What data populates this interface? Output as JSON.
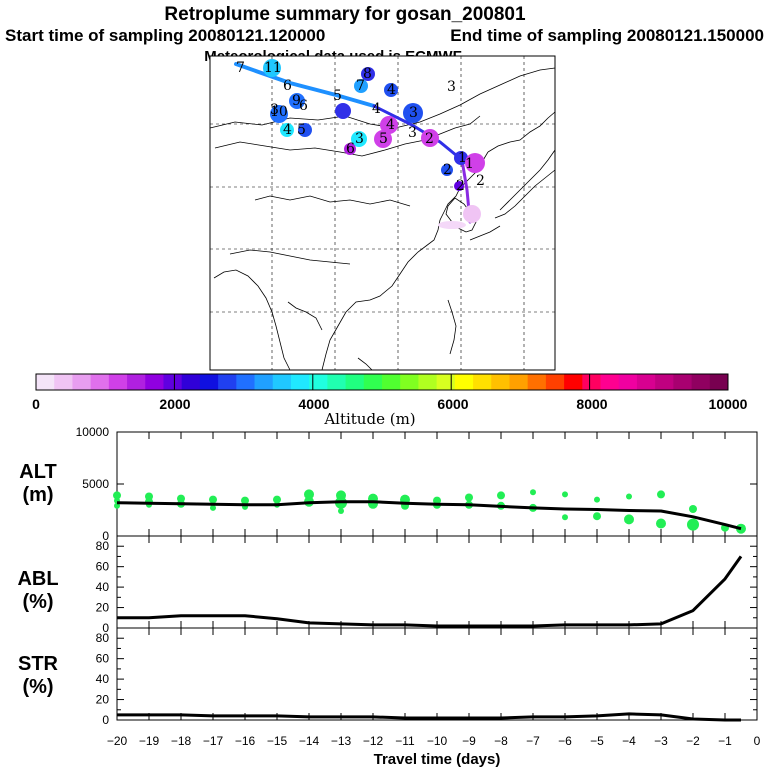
{
  "header": {
    "title": "Retroplume summary for gosan_200801",
    "start_label": "Start time of sampling 20080121.120000",
    "end_label": "End time of sampling 20080121.150000",
    "met_label": "Meteorological data used is ECMWF"
  },
  "chart_data": {
    "type": "line",
    "map": {
      "day_labels": [
        "11",
        "7",
        "6",
        "5",
        "4",
        "3",
        "2",
        "1",
        "8",
        "9",
        "10",
        "6",
        "7",
        "4",
        "3",
        "4",
        "5",
        "3",
        "6",
        "4",
        "3",
        "1",
        "2",
        "5",
        "2",
        "2",
        "3"
      ],
      "colors": {
        "track_light": "#1e90ff",
        "track_dark": "#3030e8",
        "track_purple": "#8a2be2"
      }
    },
    "colorbar": {
      "title": "Altitude (m)",
      "tick_labels": [
        "0",
        "2000",
        "4000",
        "6000",
        "8000",
        "10000"
      ],
      "min": 0,
      "max": 10000,
      "colors": [
        "#f4e4f8",
        "#f0c4f4",
        "#e89ef0",
        "#e070ec",
        "#d040e8",
        "#b020e0",
        "#9000e0",
        "#6000e0",
        "#3000d8",
        "#1010e0",
        "#2040f0",
        "#2070ff",
        "#20a0ff",
        "#20c8ff",
        "#20e8ff",
        "#20ffe0",
        "#20ffb0",
        "#20ff80",
        "#30ff50",
        "#50ff30",
        "#80ff20",
        "#b0ff20",
        "#d8ff20",
        "#ffff00",
        "#ffe000",
        "#ffc000",
        "#ffa000",
        "#ff7000",
        "#ff4000",
        "#ff0000",
        "#ff0060",
        "#ff0090",
        "#f000a0",
        "#d80090",
        "#c00080",
        "#a80070",
        "#900060",
        "#780050"
      ]
    },
    "xlabel": "Travel time (days)",
    "xlim": [
      -20,
      0
    ],
    "x_tick_labels": [
      "−20",
      "−19",
      "−18",
      "−17",
      "−16",
      "−15",
      "−14",
      "−13",
      "−12",
      "−11",
      "−10",
      "−9",
      "−8",
      "−7",
      "−6",
      "−5",
      "−4",
      "−3",
      "−2",
      "−1",
      "0"
    ],
    "panels": [
      {
        "name": "alt",
        "ylabel_top": "ALT",
        "ylabel_bottom": "(m)",
        "ylim": [
          0,
          10000
        ],
        "y_tick_labels": [
          "10000",
          "5000",
          "0"
        ],
        "y_ticks": [
          10000,
          5000,
          0
        ],
        "series": {
          "name": "mean altitude",
          "x": [
            -20,
            -19,
            -18,
            -17,
            -16,
            -15,
            -14,
            -13,
            -12,
            -11,
            -10,
            -9,
            -8,
            -7,
            -6,
            -5,
            -4,
            -3,
            -2,
            -1,
            -0.5
          ],
          "y": [
            3200,
            3150,
            3100,
            3050,
            3000,
            3000,
            3200,
            3300,
            3300,
            3150,
            3050,
            3000,
            2850,
            2700,
            2600,
            2550,
            2450,
            2400,
            1850,
            1100,
            700
          ]
        },
        "scatter": {
          "color": "#22ee55",
          "x": [
            -20,
            -20,
            -20,
            -19,
            -19,
            -19,
            -18,
            -18,
            -17,
            -17,
            -16,
            -16,
            -15,
            -15,
            -14,
            -14,
            -13,
            -13,
            -13,
            -12,
            -12,
            -11,
            -11,
            -10,
            -10,
            -9,
            -9,
            -8,
            -8,
            -7,
            -7,
            -6,
            -6,
            -5,
            -5,
            -4,
            -4,
            -3,
            -3,
            -2,
            -2,
            -1,
            -0.5
          ],
          "y": [
            3900,
            3400,
            2900,
            3800,
            3300,
            3000,
            3600,
            3100,
            3500,
            2700,
            3400,
            2800,
            3500,
            3000,
            4000,
            3300,
            3900,
            3200,
            2400,
            3600,
            3100,
            3500,
            2900,
            3400,
            3000,
            3700,
            3000,
            3900,
            2900,
            4200,
            2700,
            4000,
            1800,
            3500,
            1900,
            3800,
            1600,
            4000,
            1200,
            2600,
            1100,
            800,
            700
          ],
          "s": [
            4,
            3,
            3,
            4,
            4,
            3,
            4,
            4,
            4,
            3,
            4,
            3,
            4,
            3,
            5,
            5,
            5,
            6,
            3,
            5,
            5,
            5,
            4,
            4,
            4,
            4,
            4,
            4,
            4,
            3,
            4,
            3,
            3,
            3,
            4,
            3,
            5,
            4,
            5,
            4,
            6,
            4,
            5
          ]
        }
      },
      {
        "name": "abl",
        "ylabel_top": "ABL",
        "ylabel_bottom": "(%)",
        "ylim": [
          0,
          90
        ],
        "y_tick_labels": [
          "80",
          "60",
          "40",
          "20",
          "0"
        ],
        "y_ticks": [
          80,
          60,
          40,
          20,
          0
        ],
        "series": {
          "name": "fraction in ABL",
          "x": [
            -20,
            -19,
            -18,
            -17,
            -16,
            -15,
            -14,
            -13,
            -12,
            -11,
            -10,
            -9,
            -8,
            -7,
            -6,
            -5,
            -4,
            -3,
            -2,
            -1,
            -0.5
          ],
          "y": [
            10,
            10,
            12,
            12,
            12,
            9,
            5,
            4,
            3,
            3,
            2,
            2,
            2,
            2,
            3,
            3,
            3,
            4,
            17,
            48,
            70
          ]
        }
      },
      {
        "name": "str",
        "ylabel_top": "STR",
        "ylabel_bottom": "(%)",
        "ylim": [
          0,
          90
        ],
        "y_tick_labels": [
          "80",
          "60",
          "40",
          "20",
          "0"
        ],
        "y_ticks": [
          80,
          60,
          40,
          20,
          0
        ],
        "series": {
          "name": "fraction in stratosphere",
          "x": [
            -20,
            -19,
            -18,
            -17,
            -16,
            -15,
            -14,
            -13,
            -12,
            -11,
            -10,
            -9,
            -8,
            -7,
            -6,
            -5,
            -4,
            -3,
            -2,
            -1,
            -0.5
          ],
          "y": [
            5,
            5,
            5,
            4,
            4,
            4,
            3,
            3,
            3,
            2,
            2,
            2,
            2,
            3,
            3,
            4,
            6,
            5,
            1,
            0,
            0
          ]
        }
      }
    ]
  }
}
